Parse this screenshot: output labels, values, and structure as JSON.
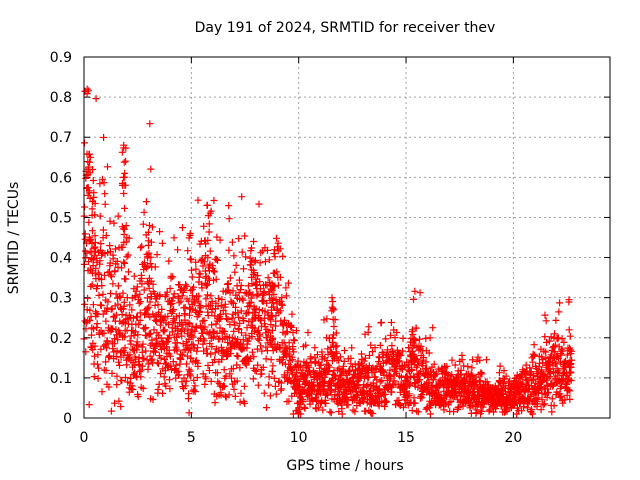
{
  "chart_data": {
    "type": "scatter",
    "title": "Day 191 of 2024, SRMTID for receiver thev",
    "xlabel": "GPS time / hours",
    "ylabel": "SRMTID / TECUs",
    "xlim": [
      0,
      24.5
    ],
    "ylim": [
      0,
      0.9
    ],
    "x_ticks": [
      0,
      5,
      10,
      15,
      20
    ],
    "x_tick_labels": [
      "0",
      "5",
      "10",
      "15",
      "20"
    ],
    "y_ticks": [
      0,
      0.1,
      0.2,
      0.3,
      0.4,
      0.5,
      0.6,
      0.7,
      0.8,
      0.9
    ],
    "y_tick_labels": [
      "0",
      "0.1",
      "0.2",
      "0.3",
      "0.4",
      "0.5",
      "0.6",
      "0.7",
      "0.8",
      "0.9"
    ],
    "grid": true,
    "marker": "+",
    "color": "#ff0000",
    "sampling_interval_hours": 0.0083,
    "x_start": 0.0,
    "x_end": 22.7,
    "envelope": [
      {
        "x": 0.0,
        "y": 0.3
      },
      {
        "x": 0.2,
        "y": 0.45
      },
      {
        "x": 0.5,
        "y": 0.3
      },
      {
        "x": 1.0,
        "y": 0.3
      },
      {
        "x": 1.5,
        "y": 0.22
      },
      {
        "x": 2.0,
        "y": 0.25
      },
      {
        "x": 2.2,
        "y": 0.15
      },
      {
        "x": 2.6,
        "y": 0.25
      },
      {
        "x": 3.0,
        "y": 0.3
      },
      {
        "x": 3.5,
        "y": 0.18
      },
      {
        "x": 4.0,
        "y": 0.2
      },
      {
        "x": 4.5,
        "y": 0.18
      },
      {
        "x": 5.0,
        "y": 0.2
      },
      {
        "x": 5.5,
        "y": 0.25
      },
      {
        "x": 5.8,
        "y": 0.3
      },
      {
        "x": 6.3,
        "y": 0.2
      },
      {
        "x": 7.0,
        "y": 0.2
      },
      {
        "x": 7.5,
        "y": 0.25
      },
      {
        "x": 8.0,
        "y": 0.25
      },
      {
        "x": 8.5,
        "y": 0.22
      },
      {
        "x": 9.0,
        "y": 0.25
      },
      {
        "x": 9.5,
        "y": 0.15
      },
      {
        "x": 10.0,
        "y": 0.08
      },
      {
        "x": 11.0,
        "y": 0.08
      },
      {
        "x": 11.6,
        "y": 0.12
      },
      {
        "x": 12.0,
        "y": 0.08
      },
      {
        "x": 13.0,
        "y": 0.08
      },
      {
        "x": 14.0,
        "y": 0.1
      },
      {
        "x": 14.5,
        "y": 0.12
      },
      {
        "x": 15.0,
        "y": 0.08
      },
      {
        "x": 15.4,
        "y": 0.15
      },
      {
        "x": 16.0,
        "y": 0.08
      },
      {
        "x": 17.0,
        "y": 0.07
      },
      {
        "x": 18.0,
        "y": 0.07
      },
      {
        "x": 19.0,
        "y": 0.05
      },
      {
        "x": 20.0,
        "y": 0.05
      },
      {
        "x": 20.5,
        "y": 0.07
      },
      {
        "x": 21.0,
        "y": 0.08
      },
      {
        "x": 21.5,
        "y": 0.1
      },
      {
        "x": 22.0,
        "y": 0.12
      },
      {
        "x": 22.7,
        "y": 0.1
      }
    ],
    "peaks": [
      {
        "x": 0.15,
        "y": 0.82
      },
      {
        "x": 0.3,
        "y": 0.65
      },
      {
        "x": 0.45,
        "y": 0.55
      },
      {
        "x": 1.85,
        "y": 0.68
      },
      {
        "x": 1.9,
        "y": 0.6
      },
      {
        "x": 3.05,
        "y": 0.48
      },
      {
        "x": 4.95,
        "y": 0.46
      },
      {
        "x": 5.75,
        "y": 0.53
      },
      {
        "x": 7.9,
        "y": 0.44
      },
      {
        "x": 8.8,
        "y": 0.33
      },
      {
        "x": 11.55,
        "y": 0.3
      },
      {
        "x": 15.3,
        "y": 0.22
      },
      {
        "x": 22.6,
        "y": 0.22
      }
    ]
  }
}
